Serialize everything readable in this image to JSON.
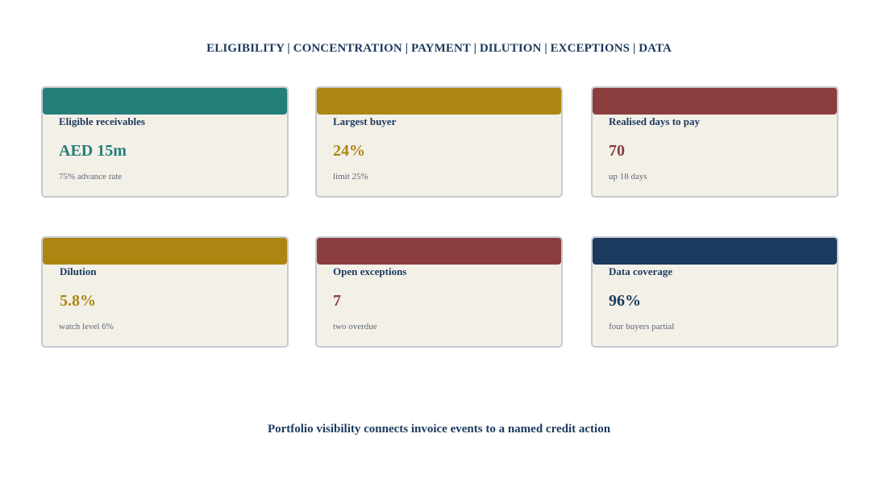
{
  "header": {
    "nav_text": "ELIGIBILITY | CONCENTRATION | PAYMENT | DILUTION | EXCEPTIONS | DATA"
  },
  "colors": {
    "teal": "#247e79",
    "gold": "#ad8612",
    "maroon": "#8b3d3f",
    "navy": "#1b3a5e",
    "card_bg": "#f3f0e8"
  },
  "cards": [
    {
      "label": "Eligible receivables",
      "value": "AED 15m",
      "sub": "75% advance rate",
      "accent": "#247e79",
      "band_icon": "teal-band"
    },
    {
      "label": "Largest buyer",
      "value": "24%",
      "sub": "limit 25%",
      "accent": "#ad8612",
      "band_icon": "gold-band"
    },
    {
      "label": "Realised days to pay",
      "value": "70",
      "sub": "up 18 days",
      "accent": "#8b3d3f",
      "band_icon": "maroon-band"
    },
    {
      "label": "Dilution",
      "value": "5.8%",
      "sub": "watch level 6%",
      "accent": "#ad8612",
      "band_icon": "gold-band"
    },
    {
      "label": "Open exceptions",
      "value": "7",
      "sub": "two overdue",
      "accent": "#8b3d3f",
      "band_icon": "maroon-band"
    },
    {
      "label": "Data coverage",
      "value": "96%",
      "sub": "four buyers partial",
      "accent": "#1b3a5e",
      "band_icon": "navy-band"
    }
  ],
  "footer": {
    "text": "Portfolio visibility connects invoice events to a named credit action"
  }
}
